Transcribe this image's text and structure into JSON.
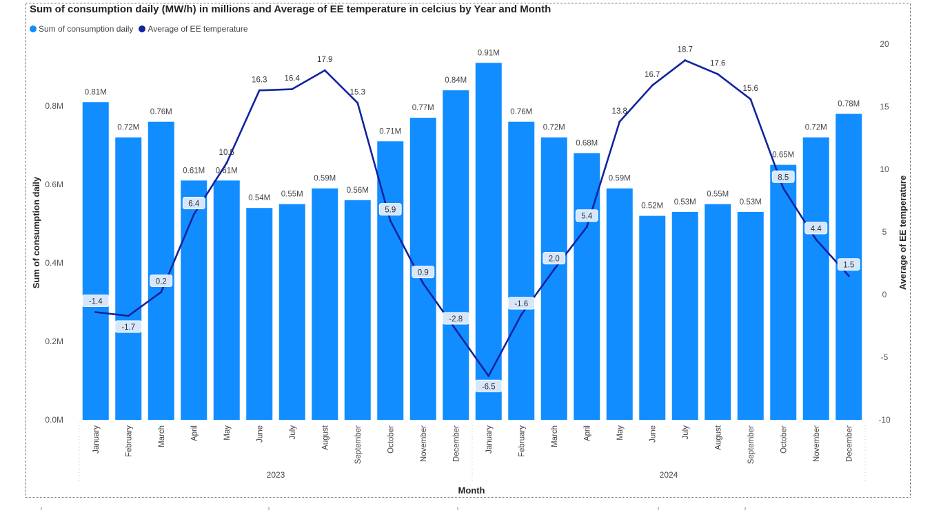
{
  "title": "Sum of consumption daily (MW/h) in millions and Average of EE temperature in celcius by Year and Month",
  "legend": [
    {
      "label": "Sum of consumption daily",
      "color": "#118DFF"
    },
    {
      "label": "Average of EE temperature",
      "color": "#12239E"
    }
  ],
  "chart_data": {
    "type": "bar",
    "secondary_type": "line",
    "categories": [
      "January",
      "February",
      "March",
      "April",
      "May",
      "June",
      "July",
      "August",
      "September",
      "October",
      "November",
      "December",
      "January",
      "February",
      "March",
      "April",
      "May",
      "June",
      "July",
      "August",
      "September",
      "October",
      "November",
      "December"
    ],
    "years": [
      {
        "label": "2023",
        "months": 12
      },
      {
        "label": "2024",
        "months": 12
      }
    ],
    "series": [
      {
        "name": "Sum of consumption daily",
        "axis": "left",
        "color": "#118DFF",
        "values": [
          0.81,
          0.72,
          0.76,
          0.61,
          0.61,
          0.54,
          0.55,
          0.59,
          0.56,
          0.71,
          0.77,
          0.84,
          0.91,
          0.76,
          0.72,
          0.68,
          0.59,
          0.52,
          0.53,
          0.55,
          0.53,
          0.65,
          0.72,
          0.78
        ],
        "labels": [
          "0.81M",
          "0.72M",
          "0.76M",
          "0.61M",
          "0.61M",
          "0.54M",
          "0.55M",
          "0.59M",
          "0.56M",
          "0.71M",
          "0.77M",
          "0.84M",
          "0.91M",
          "0.76M",
          "0.72M",
          "0.68M",
          "0.59M",
          "0.52M",
          "0.53M",
          "0.55M",
          "0.53M",
          "0.65M",
          "0.72M",
          "0.78M"
        ]
      },
      {
        "name": "Average of EE temperature",
        "axis": "right",
        "color": "#12239E",
        "values": [
          -1.4,
          -1.7,
          0.2,
          6.4,
          10.5,
          16.3,
          16.4,
          17.9,
          15.3,
          5.9,
          0.9,
          -2.8,
          -6.5,
          -1.6,
          2.0,
          5.4,
          13.8,
          16.7,
          18.7,
          17.6,
          15.6,
          8.5,
          4.4,
          1.5
        ],
        "labels": [
          "-1.4",
          "-1.7",
          "0.2",
          "6.4",
          "10.5",
          "16.3",
          "16.4",
          "17.9",
          "15.3",
          "5.9",
          "0.9",
          "-2.8",
          "-6.5",
          "-1.6",
          "2.0",
          "5.4",
          "13.8",
          "16.7",
          "18.7",
          "17.6",
          "15.6",
          "8.5",
          "4.4",
          "1.5"
        ]
      }
    ],
    "xlabel": "Month",
    "ylabel": "Sum of consumption daily",
    "y2label": "Average of EE temperature",
    "ylim": [
      0,
      0.95
    ],
    "y2lim": [
      -10,
      20
    ],
    "yticks": [
      0,
      0.2,
      0.4,
      0.6,
      0.8
    ],
    "ytick_labels": [
      "0.0M",
      "0.2M",
      "0.4M",
      "0.6M",
      "0.8M"
    ],
    "y2ticks": [
      -10,
      -5,
      0,
      5,
      10,
      15,
      20
    ],
    "y2tick_labels": [
      "-10",
      "-5",
      "0",
      "5",
      "10",
      "15",
      "20"
    ],
    "legend_position": "top-left",
    "grid": false
  }
}
